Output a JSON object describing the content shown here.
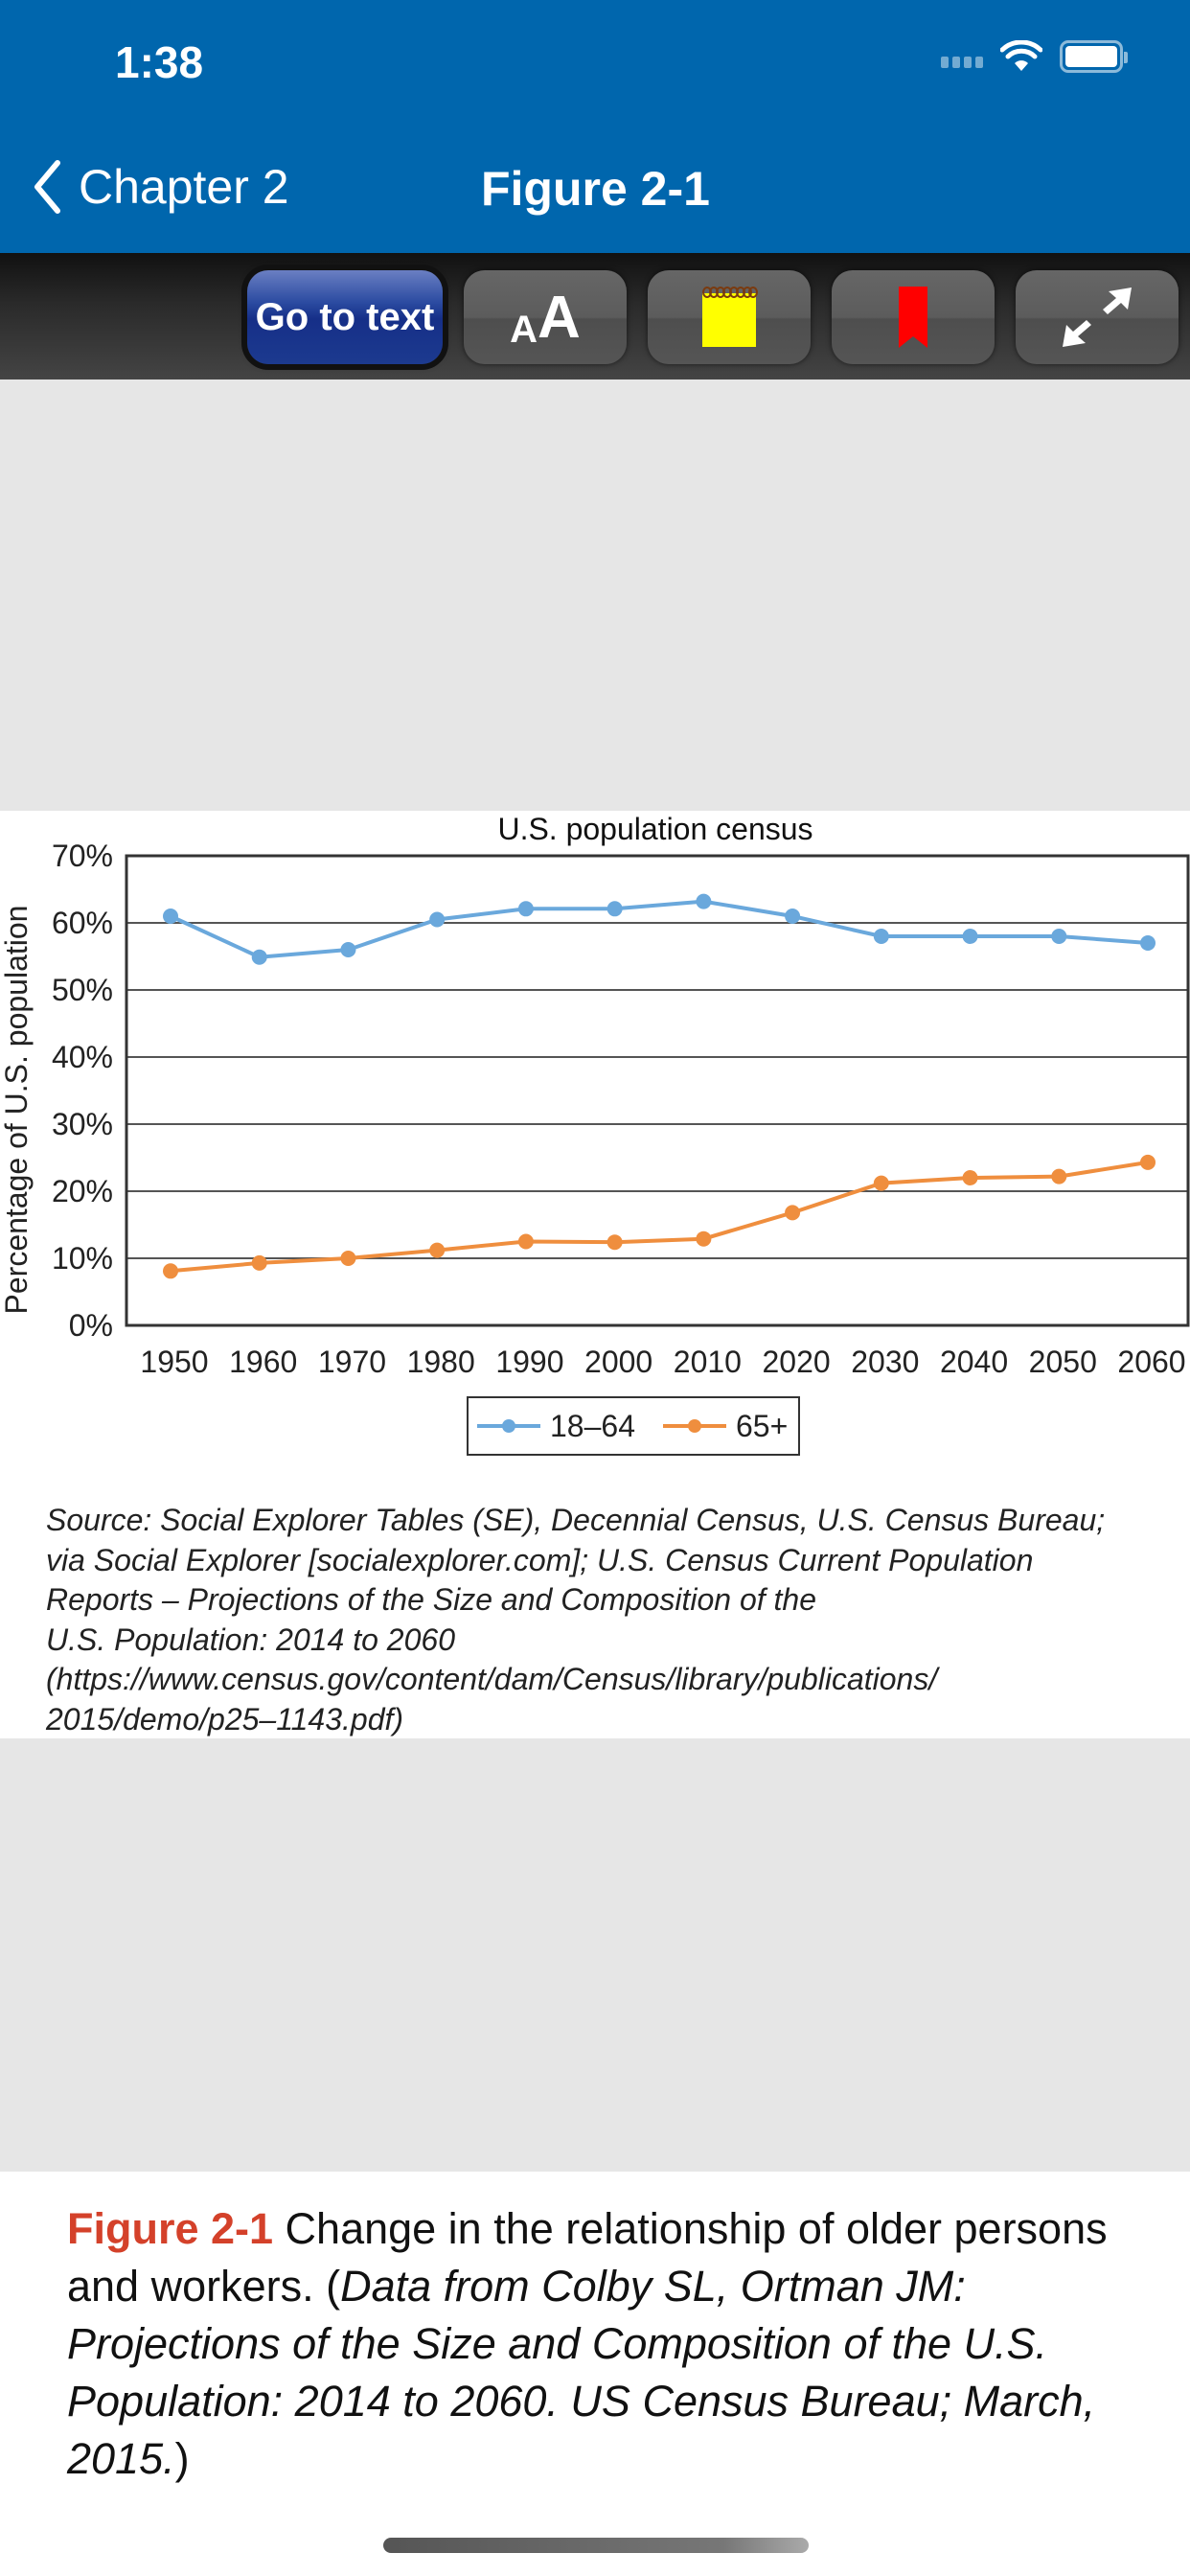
{
  "status_bar": {
    "time": "1:38",
    "wifi_icon": "wifi-icon",
    "battery_icon": "battery-icon"
  },
  "nav": {
    "back_label": "Chapter 2",
    "title": "Figure 2-1"
  },
  "toolbar": {
    "go_to_text_label": "Go to text",
    "font_size_label_small": "A",
    "font_size_label_large": "A",
    "note_icon": "notepad-icon",
    "bookmark_icon": "bookmark-icon",
    "fullscreen_icon": "expand-arrows-icon"
  },
  "colors": {
    "header_blue": "#0066ad",
    "series_18_64": "#6aa8dc",
    "series_65plus": "#ef8e3e",
    "caption_figure_label": "#d4412a"
  },
  "chart_data": {
    "type": "line",
    "title": "U.S. population census",
    "xlabel": "",
    "ylabel": "Percentage of U.S. population",
    "categories": [
      "1950",
      "1960",
      "1970",
      "1980",
      "1990",
      "2000",
      "2010",
      "2020",
      "2030",
      "2040",
      "2050",
      "2060"
    ],
    "y_ticks": [
      "0%",
      "10%",
      "20%",
      "30%",
      "40%",
      "50%",
      "60%",
      "70%"
    ],
    "ylim": [
      0,
      70
    ],
    "grid": true,
    "legend_position": "bottom-center",
    "series": [
      {
        "name": "18–64",
        "values": [
          61.0,
          54.9,
          56.0,
          60.5,
          62.1,
          62.1,
          63.2,
          61.0,
          58.0,
          58.0,
          58.0,
          57.0
        ]
      },
      {
        "name": "65+",
        "values": [
          8.1,
          9.3,
          10.0,
          11.2,
          12.5,
          12.4,
          12.9,
          16.8,
          21.2,
          22.0,
          22.2,
          24.3
        ]
      }
    ]
  },
  "figure": {
    "source_text": "Source: Social Explorer Tables (SE), Decennial Census, U.S. Census Bureau;\nvia Social Explorer [socialexplorer.com]; U.S. Census Current Population\nReports – Projections of the Size and Composition of the\nU.S. Population: 2014 to 2060\n(https://www.census.gov/content/dam/Census/library/publications/\n2015/demo/p25–1143.pdf)"
  },
  "caption": {
    "label": "Figure 2-1",
    "text": " Change in the relationship of older persons and workers. (",
    "italic": "Data from Colby SL, Ortman JM: Projections of the Size and Composition of the U.S. Population: 2014 to 2060. US Census Bureau; March, 2015.",
    "end": ")"
  }
}
